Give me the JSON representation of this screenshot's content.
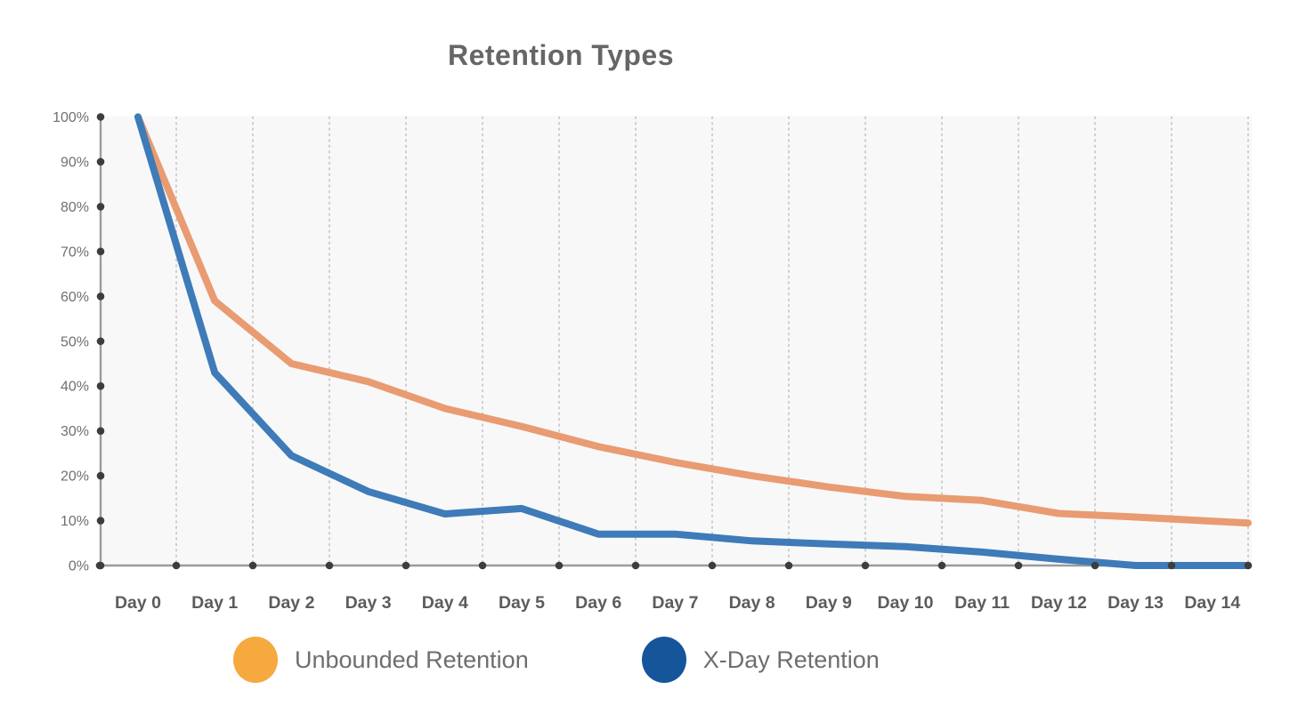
{
  "title": "Retention Types",
  "chart_data": {
    "type": "line",
    "title": "Retention Types",
    "categories": [
      "Day 0",
      "Day 1",
      "Day 2",
      "Day 3",
      "Day 4",
      "Day 5",
      "Day 6",
      "Day 7",
      "Day 8",
      "Day 9",
      "Day 10",
      "Day 11",
      "Day 12",
      "Day 13",
      "Day 14"
    ],
    "y_tick_labels": [
      "0%",
      "10%",
      "20%",
      "30%",
      "40%",
      "50%",
      "60%",
      "70%",
      "80%",
      "90%",
      "100%"
    ],
    "xlabel": "",
    "ylabel": "",
    "ylim": [
      0,
      100
    ],
    "grid": "vertical dotted gridlines only",
    "legend_position": "bottom",
    "series": [
      {
        "name": "Unbounded Retention",
        "color": "#E99B72",
        "values": [
          100,
          59,
          45,
          41,
          35,
          31,
          26.5,
          23,
          20,
          17.5,
          15.4,
          14.5,
          11.6,
          10.8,
          9.9
        ]
      },
      {
        "name": "X-Day Retention",
        "color": "#3E7BB8",
        "values": [
          100,
          43,
          24.5,
          16.5,
          11.5,
          12.7,
          7,
          7,
          5.5,
          4.8,
          4.2,
          3,
          1.4,
          0,
          0
        ]
      }
    ]
  },
  "legend": {
    "items": [
      {
        "label": "Unbounded Retention",
        "marker_color": "#F6A93E"
      },
      {
        "label": "X-Day Retention",
        "marker_color": "#15559A"
      }
    ]
  },
  "colors": {
    "title_text": "#666666",
    "axis": "#9B9B9B",
    "tick_dot": "#3D3D3D",
    "gridline": "#C4C4C4",
    "axis_label": "#707070",
    "x_label": "#5C5C5C",
    "legend_text": "#6E6E6E",
    "plot_bg": "#F8F8F8"
  }
}
